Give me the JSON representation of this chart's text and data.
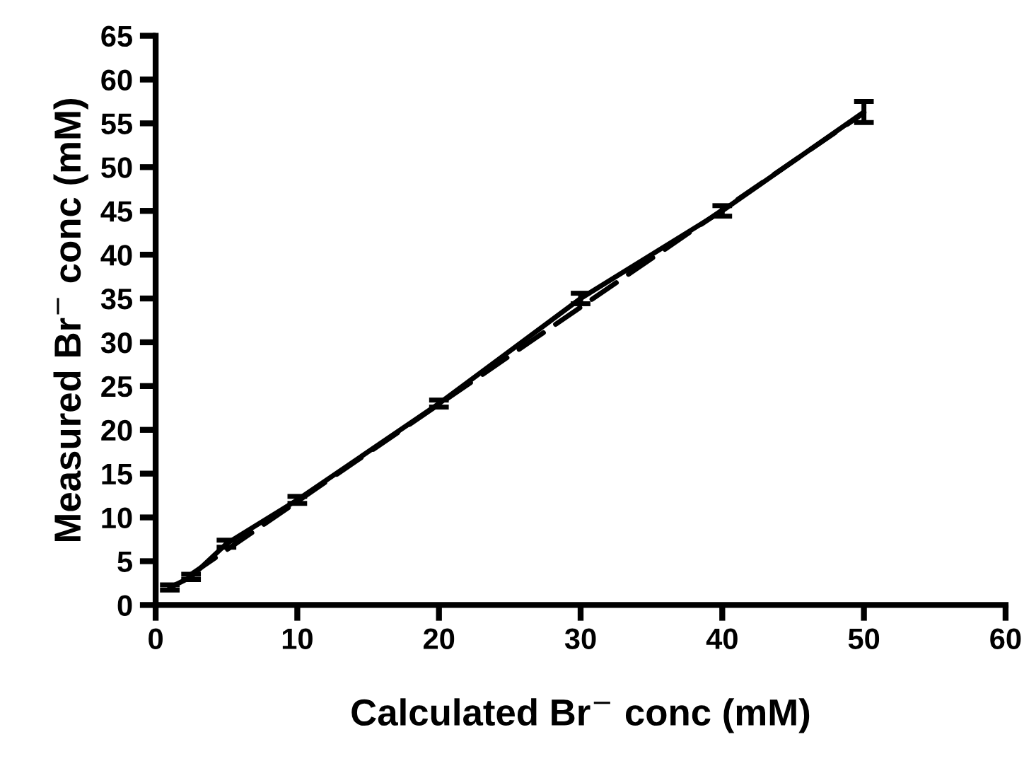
{
  "chart_data": {
    "type": "line",
    "xlabel": "Calculated Br$^{−}$ conc (mM)",
    "ylabel": "Measured Br$^{−}$ conc (mM)",
    "x": [
      1,
      2.5,
      5,
      10,
      20,
      30,
      40,
      50
    ],
    "series": [
      {
        "color": "#000000",
        "line_style": "solid",
        "values": [
          2,
          3.2,
          7,
          12,
          23,
          35,
          45,
          56.3
        ],
        "errors": [
          0.3,
          0.3,
          0.4,
          0.4,
          0.4,
          0.6,
          0.6,
          1.2
        ]
      },
      {
        "color": "#000000",
        "line_style": "dashed",
        "x": [
          2.5,
          50
        ],
        "values": [
          3.5,
          56.2
        ]
      }
    ],
    "xlim": [
      0,
      60
    ],
    "ylim": [
      0,
      65
    ],
    "xticks": [
      0,
      10,
      20,
      30,
      40,
      50,
      60
    ],
    "yticks": [
      0,
      5,
      10,
      15,
      20,
      25,
      30,
      35,
      40,
      45,
      50,
      55,
      60,
      65
    ],
    "grid": false,
    "legend": false
  }
}
